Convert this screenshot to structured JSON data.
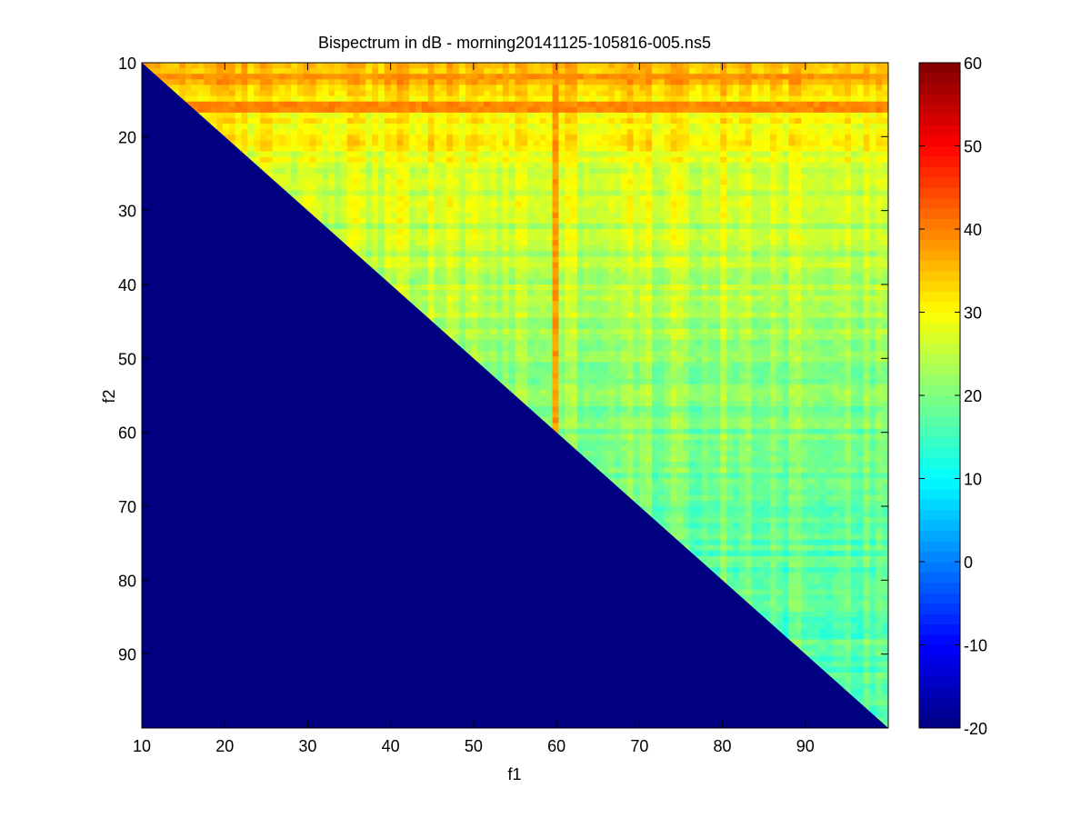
{
  "chart_data": {
    "type": "heatmap",
    "title": "Bispectrum in dB - morning20141125-105816-005.ns5",
    "xlabel": "f1",
    "ylabel": "f2",
    "xlim": [
      10,
      100
    ],
    "ylim": [
      10,
      100
    ],
    "y_direction": "reversed",
    "xticks": [
      10,
      20,
      30,
      40,
      50,
      60,
      70,
      80,
      90
    ],
    "yticks": [
      10,
      20,
      30,
      40,
      50,
      60,
      70,
      80,
      90
    ],
    "colormap": "jet",
    "clim": [
      -20,
      60
    ],
    "colorbar_ticks": [
      60,
      50,
      40,
      30,
      20,
      10,
      0,
      -10,
      -20
    ],
    "colorbar_label_text": [
      "60",
      "50",
      "40",
      "30",
      "20",
      "10",
      "0",
      "-10",
      "-20"
    ],
    "masked_value_db": -20,
    "mask_region": "f2 > f1",
    "approx_levels_db": [
      {
        "f2_range": [
          10,
          20
        ],
        "level": 36
      },
      {
        "f2_range": [
          20,
          30
        ],
        "level": 30
      },
      {
        "f2_range": [
          30,
          50
        ],
        "level": 26
      },
      {
        "f2_range": [
          50,
          70
        ],
        "level": 22
      },
      {
        "f2_range": [
          70,
          100
        ],
        "level": 18
      }
    ],
    "notable_features": [
      {
        "type": "vertical-line",
        "f1": 60,
        "level_db": 40
      },
      {
        "type": "horizontal-band",
        "f2": 12,
        "level_db": 40
      },
      {
        "type": "horizontal-band",
        "f2": 16,
        "level_db": 41
      }
    ]
  }
}
